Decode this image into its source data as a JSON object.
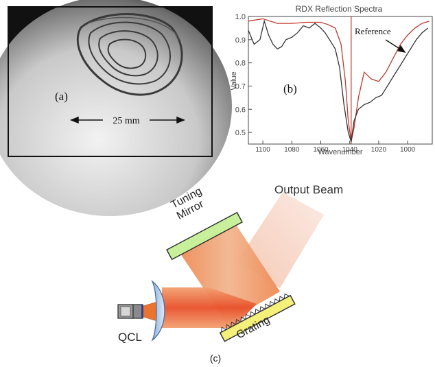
{
  "panel_a": {
    "label": "(a)",
    "scale_text": "25 mm"
  },
  "panel_b": {
    "label": "(b)",
    "annotation": "Reference"
  },
  "panel_c": {
    "label": "(c)",
    "output_beam": "Output Beam",
    "tuning_mirror_line1": "Tuning",
    "tuning_mirror_line2": "Mirror",
    "grating": "Grating",
    "qcl": "QCL"
  },
  "colors": {
    "reference_curve": "#c0392b",
    "sample_curve": "#333333",
    "beam": "#e8502a",
    "mirror": "#c8ef9a",
    "grating": "#f5f07a",
    "lens": "#b8cfe8"
  },
  "chart_data": {
    "type": "line",
    "title": "RDX Reflection Spectra",
    "xlabel": "Wavenumber",
    "ylabel": "Value",
    "xlim": [
      1110,
      983
    ],
    "ylim": [
      0.45,
      1.0
    ],
    "xticks": [
      1100,
      1080,
      1060,
      1040,
      1020,
      1000
    ],
    "yticks": [
      0.5,
      0.6,
      0.7,
      0.8,
      0.9,
      1.0
    ],
    "vline_x": 1039,
    "series": [
      {
        "name": "Reference",
        "color": "#c0392b",
        "x": [
          1110,
          1100,
          1090,
          1080,
          1070,
          1060,
          1055,
          1050,
          1046,
          1043,
          1041,
          1039,
          1037,
          1034,
          1030,
          1025,
          1020,
          1015,
          1010,
          1005,
          1000,
          995,
          990,
          985
        ],
        "y": [
          0.98,
          0.99,
          0.97,
          0.97,
          0.975,
          0.975,
          0.965,
          0.95,
          0.88,
          0.72,
          0.55,
          0.46,
          0.52,
          0.65,
          0.76,
          0.73,
          0.72,
          0.76,
          0.82,
          0.88,
          0.92,
          0.95,
          0.97,
          0.98
        ]
      },
      {
        "name": "",
        "color": "#333333",
        "x": [
          1110,
          1106,
          1102,
          1099,
          1096,
          1093,
          1090,
          1087,
          1084,
          1080,
          1076,
          1072,
          1068,
          1064,
          1062,
          1060,
          1057,
          1054,
          1050,
          1047,
          1044,
          1041,
          1039,
          1037,
          1034,
          1030,
          1026,
          1022,
          1018,
          1014,
          1010,
          1006,
          1002,
          998,
          994,
          990,
          986
        ],
        "y": [
          0.94,
          0.88,
          0.9,
          0.98,
          0.92,
          0.88,
          0.86,
          0.87,
          0.9,
          0.91,
          0.93,
          0.96,
          0.95,
          0.97,
          0.96,
          0.95,
          0.93,
          0.9,
          0.86,
          0.78,
          0.62,
          0.5,
          0.46,
          0.55,
          0.6,
          0.62,
          0.63,
          0.65,
          0.66,
          0.7,
          0.74,
          0.78,
          0.82,
          0.86,
          0.9,
          0.93,
          0.95
        ]
      }
    ]
  }
}
